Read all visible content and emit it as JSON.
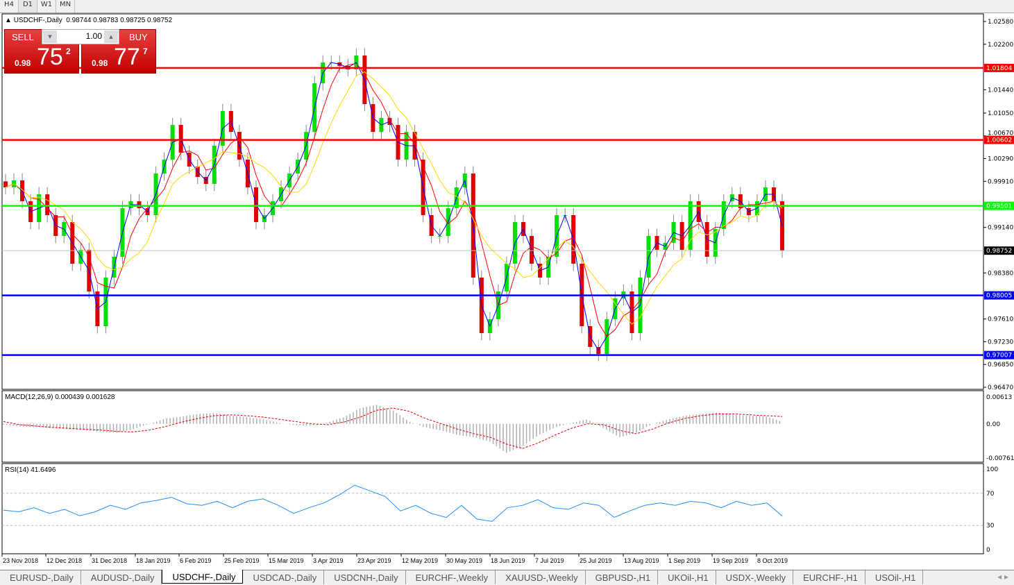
{
  "timeframes": [
    "H4",
    "D1",
    "W1",
    "MN"
  ],
  "active_timeframe": "D1",
  "chart": {
    "symbol_line": "USDCHF-,Daily",
    "ohlc": "0.98744 0.98783 0.98725 0.98752"
  },
  "trade_panel": {
    "sell_label": "SELL",
    "buy_label": "BUY",
    "lot": "1.00",
    "sell_big": "0.98",
    "sell_pips": "75",
    "sell_frac": "2",
    "buy_big": "0.98",
    "buy_pips": "77",
    "buy_frac": "7"
  },
  "price_axis": {
    "min": 0.9647,
    "max": 1.0258,
    "ticks": [
      "1.02580",
      "1.02200",
      "1.01440",
      "1.01050",
      "1.00670",
      "1.00290",
      "0.99910",
      "0.99140",
      "0.98380",
      "0.97610",
      "0.97230",
      "0.96850",
      "0.96470"
    ]
  },
  "levels": [
    {
      "price": 1.01804,
      "label": "1.01804",
      "color": "#ff0000"
    },
    {
      "price": 1.00602,
      "label": "1.00602",
      "color": "#ff0000"
    },
    {
      "price": 0.99501,
      "label": "0.99501",
      "color": "#00ff00"
    },
    {
      "price": 0.98005,
      "label": "0.98005",
      "color": "#0000ff"
    },
    {
      "price": 0.97007,
      "label": "0.97007",
      "color": "#0000ff"
    }
  ],
  "current_price": {
    "price": 0.98752,
    "label": "0.98752"
  },
  "colors": {
    "bull": "#00e000",
    "bear": "#e00000",
    "ma_fast": "#0000ff",
    "ma_mid": "#ff0000",
    "ma_slow": "#ffd700"
  },
  "chart_data": {
    "type": "candlestick",
    "closes": [
      0.99809,
      0.99925,
      0.99577,
      0.99229,
      0.99693,
      0.99345,
      0.98997,
      0.99229,
      0.98534,
      0.98766,
      0.9807,
      0.9749,
      0.98302,
      0.9865,
      0.99461,
      0.99577,
      0.99461,
      0.99345,
      1.00041,
      1.00273,
      1.00852,
      1.00389,
      1.00157,
      0.99983,
      0.99867,
      1.00505,
      1.01084,
      1.00736,
      1.00273,
      0.99809,
      0.99229,
      0.99345,
      0.99577,
      0.99809,
      1.00041,
      1.00273,
      1.00736,
      1.01548,
      1.01896,
      1.01896,
      1.01838,
      1.0178,
      1.02012,
      1.012,
      1.00736,
      1.00968,
      1.00852,
      1.00273,
      1.00736,
      1.00273,
      0.99345,
      0.98997,
      0.98997,
      0.99461,
      0.99809,
      1.00041,
      0.98302,
      0.97374,
      0.97606,
      0.9807,
      0.98534,
      0.99229,
      0.98997,
      0.98534,
      0.98302,
      0.9865,
      0.99345,
      0.99345,
      0.98534,
      0.9749,
      0.97142,
      0.97026,
      0.97606,
      0.97954,
      0.9807,
      0.97374,
      0.98302,
      0.98997,
      0.98766,
      0.98882,
      0.99229,
      0.98766,
      0.99577,
      0.99229,
      0.9865,
      0.99113,
      0.99577,
      0.99693,
      0.99461,
      0.99345,
      0.99577,
      0.99809,
      0.99577,
      0.98752
    ],
    "date_labels": [
      "23 Nov 2018",
      "12 Dec 2018",
      "31 Dec 2018",
      "18 Jan 2019",
      "6 Feb 2019",
      "25 Feb 2019",
      "15 Mar 2019",
      "3 Apr 2019",
      "23 Apr 2019",
      "12 May 2019",
      "30 May 2019",
      "18 Jun 2019",
      "7 Jul 2019",
      "25 Jul 2019",
      "13 Aug 2019",
      "1 Sep 2019",
      "19 Sep 2019",
      "8 Oct 2019"
    ]
  },
  "macd": {
    "label": "MACD(12,26,9) 0.000439 0.001628",
    "max_label": "0.00613",
    "zero_label": "0.00",
    "min_label": "-0.007612",
    "max": 0.00613,
    "min": -0.007612,
    "hist": [
      -0.0002,
      -0.0006,
      -0.0008,
      -0.001,
      -0.0012,
      -0.0015,
      -0.0018,
      -0.002,
      -0.0012,
      0,
      0.0012,
      0.0016,
      0.0022,
      0.0024,
      0.0018,
      0.0015,
      0.001,
      0.0002,
      -0.0003,
      -0.0004,
      0.0003,
      0.0015,
      0.0035,
      0.0042,
      0.003,
      0.0005,
      -0.0008,
      -0.0015,
      -0.0025,
      -0.003,
      -0.004,
      -0.0065,
      -0.005,
      -0.0025,
      -0.0008,
      0.0002,
      0.001,
      -0.001,
      -0.003,
      -0.002,
      0,
      0.001,
      0.0018,
      0.0022,
      0.0025,
      0.002,
      0.0018,
      0.0017,
      0.000439
    ],
    "signal": [
      0.0005,
      -0.0002,
      -0.0005,
      -0.0008,
      -0.001,
      -0.0012,
      -0.0014,
      -0.0017,
      -0.0018,
      -0.0014,
      -0.0006,
      0.0004,
      0.0012,
      0.0018,
      0.002,
      0.0018,
      0.0015,
      0.001,
      0.0005,
      0,
      -0.0002,
      0.0004,
      0.0015,
      0.003,
      0.0035,
      0.0028,
      0.0012,
      0,
      -0.0012,
      -0.0022,
      -0.003,
      -0.0045,
      -0.0055,
      -0.0042,
      -0.0025,
      -0.001,
      0,
      -0.0002,
      -0.0015,
      -0.0022,
      -0.0012,
      0.0002,
      0.0012,
      0.0018,
      0.0022,
      0.0022,
      0.002,
      0.0018,
      0.001628
    ]
  },
  "rsi": {
    "label": "RSI(14) 41.6496",
    "ticks": [
      "100",
      "70",
      "30",
      "0"
    ],
    "values": [
      49,
      47,
      52,
      45,
      50,
      42,
      47,
      55,
      50,
      58,
      61,
      65,
      57,
      55,
      60,
      52,
      60,
      63,
      55,
      45,
      52,
      58,
      68,
      80,
      73,
      66,
      48,
      55,
      45,
      40,
      55,
      38,
      35,
      52,
      55,
      62,
      52,
      50,
      58,
      55,
      40,
      48,
      55,
      58,
      55,
      60,
      58,
      52,
      60,
      55,
      58,
      41.65
    ]
  },
  "tabs": [
    "EURUSD-,Daily",
    "AUDUSD-,Daily",
    "USDCHF-,Daily",
    "USDCAD-,Daily",
    "USDCNH-,Daily",
    "EURCHF-,Weekly",
    "XAUUSD-,Weekly",
    "GBPUSD-,H1",
    "UKOil-,H1",
    "USDX-,Weekly",
    "EURCHF-,H1",
    "USOil-,H1"
  ],
  "active_tab": "USDCHF-,Daily"
}
